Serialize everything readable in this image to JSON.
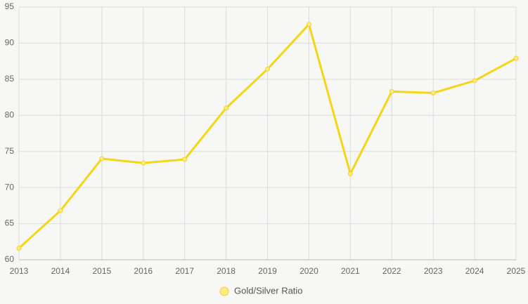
{
  "chart_data": {
    "type": "line",
    "categories": [
      "2013",
      "2014",
      "2015",
      "2016",
      "2017",
      "2018",
      "2019",
      "2020",
      "2021",
      "2022",
      "2023",
      "2024",
      "2025"
    ],
    "series": [
      {
        "name": "Gold/Silver Ratio",
        "color": "#f5d616",
        "values": [
          61.6,
          66.8,
          74.0,
          73.4,
          73.9,
          81.0,
          86.4,
          92.6,
          71.9,
          83.3,
          83.1,
          84.8,
          87.9
        ]
      }
    ],
    "ylim": [
      60,
      95
    ],
    "yticks": [
      60,
      65,
      70,
      75,
      80,
      85,
      90,
      95
    ],
    "grid": true,
    "legend": "bottom"
  }
}
